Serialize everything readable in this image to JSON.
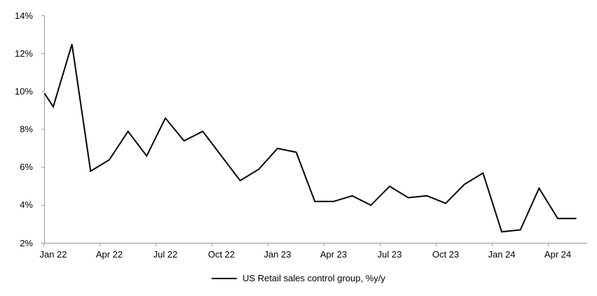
{
  "chart_data": {
    "type": "line",
    "title": "",
    "legend_label": "US Retail sales control group, %y/y",
    "legend_position": "bottom-center",
    "grid": false,
    "background": "#FFFFFF",
    "axis_color": "#999999",
    "line_color": "#000000",
    "ylim": [
      2,
      14
    ],
    "y_tick_labels": [
      "14%",
      "12%",
      "10%",
      "8%",
      "6%",
      "4%",
      "2%"
    ],
    "y_tick_values": [
      14,
      12,
      10,
      8,
      6,
      4,
      2
    ],
    "x_tick_labels": [
      "Jan 22",
      "Apr 22",
      "Jul 22",
      "Oct 22",
      "Jan 23",
      "Apr 23",
      "Jul 23",
      "Oct 23",
      "Jan 24",
      "Apr 24"
    ],
    "x": [
      "Jan 22",
      "Feb 22",
      "Mar 22",
      "Apr 22",
      "May 22",
      "Jun 22",
      "Jul 22",
      "Aug 22",
      "Sep 22",
      "Oct 22",
      "Nov 22",
      "Dec 22",
      "Jan 23",
      "Feb 23",
      "Mar 23",
      "Apr 23",
      "May 23",
      "Jun 23",
      "Jul 23",
      "Aug 23",
      "Sep 23",
      "Oct 23",
      "Nov 23",
      "Dec 23",
      "Jan 24",
      "Feb 24",
      "Mar 24",
      "Apr 24",
      "May 24"
    ],
    "series": [
      {
        "name": "US Retail sales control group, %y/y",
        "color": "#000000",
        "values": [
          9.2,
          12.5,
          5.8,
          6.4,
          7.9,
          6.6,
          8.6,
          7.4,
          7.9,
          6.6,
          5.3,
          5.9,
          7.0,
          6.8,
          4.2,
          4.2,
          4.5,
          4.0,
          5.0,
          4.4,
          4.5,
          4.1,
          5.1,
          5.7,
          2.6,
          2.7,
          4.9,
          3.3,
          3.3
        ]
      }
    ],
    "lead_in_value_at_left_edge": 9.9
  }
}
